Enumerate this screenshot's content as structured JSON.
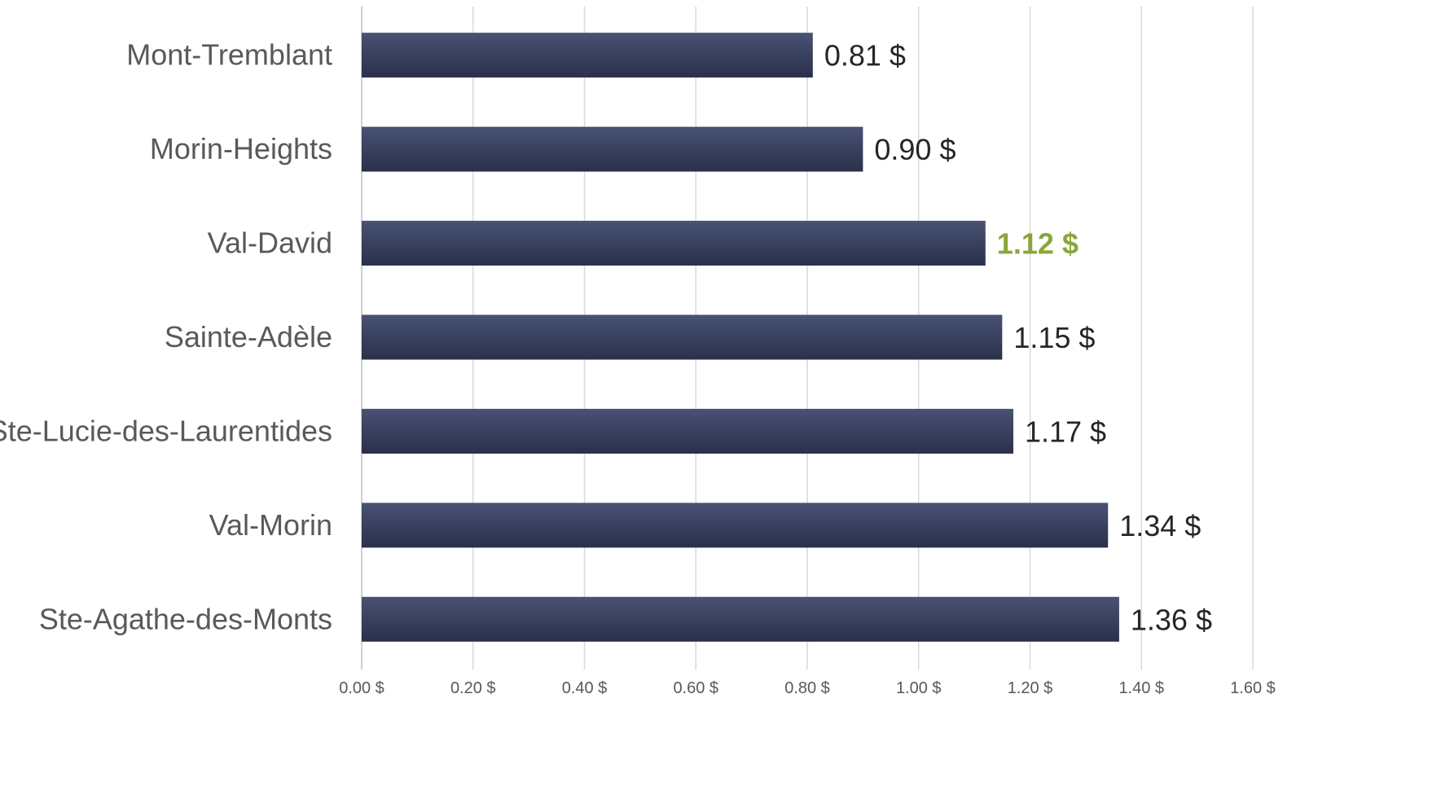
{
  "chart_data": {
    "type": "bar",
    "orientation": "horizontal",
    "categories": [
      "Mont-Tremblant",
      "Morin-Heights",
      "Val-David",
      "Sainte-Adèle",
      "Ste-Lucie-des-Laurentides",
      "Val-Morin",
      "Ste-Agathe-des-Monts"
    ],
    "values": [
      0.81,
      0.9,
      1.12,
      1.15,
      1.17,
      1.34,
      1.36
    ],
    "data_labels": [
      "0.81 $",
      "0.90 $",
      "1.12 $",
      "1.15 $",
      "1.17 $",
      "1.34 $",
      "1.36 $"
    ],
    "highlight_category": "Val-David",
    "xlim": [
      0,
      1.6
    ],
    "x_ticks": [
      0,
      0.2,
      0.4,
      0.6,
      0.8,
      1.0,
      1.2,
      1.4,
      1.6
    ],
    "x_tick_labels": [
      "0.00 $",
      "0.20 $",
      "0.40 $",
      "0.60 $",
      "0.80 $",
      "1.00 $",
      "1.20 $",
      "1.40 $",
      "1.60 $"
    ],
    "title": "",
    "xlabel": "",
    "ylabel": "",
    "grid": "vertical",
    "legend": "none",
    "colors": {
      "bar": "#323a58",
      "bar_light": "#4a5275",
      "highlight_label": "#8aa63a",
      "label": "#595959",
      "value_label": "#262626",
      "grid": "#d9d9d9"
    }
  }
}
